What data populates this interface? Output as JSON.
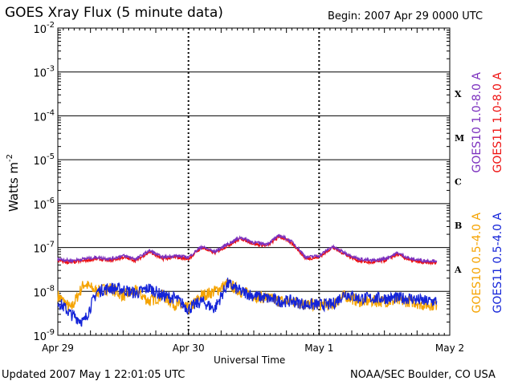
{
  "header": {
    "title": "GOES Xray Flux (5 minute data)",
    "begin": "Begin:  2007 Apr 29 0000 UTC"
  },
  "footer": {
    "updated": "Updated 2007 May  1 22:01:05 UTC",
    "credit": "NOAA/SEC Boulder, CO USA"
  },
  "chart_data": {
    "type": "line",
    "title": "GOES Xray Flux (5 minute data)",
    "xlabel": "Universal Time",
    "ylabel_base": "Watts m",
    "ylabel_exp": "-2",
    "yscale": "log",
    "ylim": [
      1e-09,
      0.01
    ],
    "xlim_days": [
      0,
      3
    ],
    "x_ticks": [
      "Apr 29",
      "Apr 30",
      "May 1",
      "May 2"
    ],
    "y_ticks": [
      {
        "base": "10",
        "exp": "-9"
      },
      {
        "base": "10",
        "exp": "-8"
      },
      {
        "base": "10",
        "exp": "-7"
      },
      {
        "base": "10",
        "exp": "-6"
      },
      {
        "base": "10",
        "exp": "-5"
      },
      {
        "base": "10",
        "exp": "-4"
      },
      {
        "base": "10",
        "exp": "-3"
      },
      {
        "base": "10",
        "exp": "-2"
      }
    ],
    "flare_classes": [
      "A",
      "B",
      "C",
      "M",
      "X"
    ],
    "colors": {
      "goes10_long": "#7b2fbe",
      "goes11_long": "#ee1111",
      "goes10_short": "#f5a300",
      "goes11_short": "#1424d8"
    },
    "legend_right": [
      {
        "text": "GOES10 1.0-8.0 A",
        "color": "#7b2fbe"
      },
      {
        "text": "GOES11 1.0-8.0 A",
        "color": "#ee1111"
      }
    ],
    "legend_right_lower": [
      {
        "text": "GOES10 0.5-4.0 A",
        "color": "#f5a300"
      },
      {
        "text": "GOES11 0.5-4.0 A",
        "color": "#1424d8"
      }
    ],
    "series": [
      {
        "name": "GOES11 1.0-8.0 A",
        "x": [
          0.0,
          0.1,
          0.2,
          0.3,
          0.4,
          0.5,
          0.6,
          0.7,
          0.8,
          0.9,
          1.0,
          1.1,
          1.2,
          1.3,
          1.4,
          1.5,
          1.6,
          1.7,
          1.8,
          1.9,
          2.0,
          2.1,
          2.2,
          2.3,
          2.4,
          2.5,
          2.6,
          2.7,
          2.8,
          2.9
        ],
        "y": [
          5e-08,
          4.5e-08,
          5e-08,
          5.5e-08,
          5e-08,
          6e-08,
          5e-08,
          8e-08,
          5.5e-08,
          6e-08,
          5.5e-08,
          1e-07,
          7.5e-08,
          1.1e-07,
          1.6e-07,
          1.2e-07,
          1.1e-07,
          1.8e-07,
          1.2e-07,
          5.5e-08,
          6e-08,
          1e-07,
          7e-08,
          5e-08,
          4.5e-08,
          5e-08,
          7e-08,
          5e-08,
          4.5e-08,
          4.5e-08
        ]
      },
      {
        "name": "GOES10 1.0-8.0 A",
        "x": [
          0.0,
          0.1,
          0.2,
          0.3,
          0.4,
          0.5,
          0.6,
          0.7,
          0.8,
          0.9,
          1.0,
          1.1,
          1.2,
          1.3,
          1.4,
          1.5,
          1.6,
          1.7,
          1.8,
          1.9,
          2.0,
          2.1,
          2.2,
          2.3,
          2.4,
          2.5,
          2.6,
          2.7,
          2.8,
          2.9
        ],
        "y": [
          5.5e-08,
          5e-08,
          5.5e-08,
          6e-08,
          5.5e-08,
          6.5e-08,
          5.5e-08,
          8.5e-08,
          6e-08,
          6.5e-08,
          6e-08,
          1.05e-07,
          8e-08,
          1.2e-07,
          1.7e-07,
          1.3e-07,
          1.2e-07,
          1.9e-07,
          1.3e-07,
          6e-08,
          6.5e-08,
          1.05e-07,
          7.5e-08,
          5.5e-08,
          5e-08,
          5.5e-08,
          7.5e-08,
          5.5e-08,
          5e-08,
          5e-08
        ]
      },
      {
        "name": "GOES10 0.5-4.0 A",
        "x": [
          0.0,
          0.1,
          0.2,
          0.3,
          0.4,
          0.5,
          0.6,
          0.7,
          0.8,
          0.9,
          1.0,
          1.1,
          1.2,
          1.3,
          1.4,
          1.5,
          1.6,
          1.7,
          1.8,
          1.9,
          2.0,
          2.1,
          2.2,
          2.3,
          2.4,
          2.5,
          2.6,
          2.7,
          2.8,
          2.9
        ],
        "y": [
          8e-09,
          4e-09,
          1.5e-08,
          1e-08,
          1.2e-08,
          8e-09,
          1e-08,
          6e-09,
          8e-09,
          5e-09,
          4e-09,
          8e-09,
          1e-08,
          1.5e-08,
          1e-08,
          8e-09,
          7e-09,
          6e-09,
          6e-09,
          5e-09,
          5e-09,
          5e-09,
          8e-09,
          6e-09,
          6e-09,
          6e-09,
          6e-09,
          6e-09,
          5e-09,
          5e-09
        ]
      },
      {
        "name": "GOES11 0.5-4.0 A",
        "x": [
          0.0,
          0.1,
          0.2,
          0.3,
          0.4,
          0.5,
          0.6,
          0.7,
          0.8,
          0.9,
          1.0,
          1.1,
          1.2,
          1.3,
          1.4,
          1.5,
          1.6,
          1.7,
          1.8,
          1.9,
          2.0,
          2.1,
          2.2,
          2.3,
          2.4,
          2.5,
          2.6,
          2.7,
          2.8,
          2.9
        ],
        "y": [
          6e-09,
          3e-09,
          2e-09,
          1e-08,
          1.2e-08,
          1.1e-08,
          9e-09,
          1.2e-08,
          8e-09,
          7e-09,
          4e-09,
          6e-09,
          4e-09,
          1.5e-08,
          1e-08,
          8e-09,
          7e-09,
          6e-09,
          6e-09,
          5e-09,
          5e-09,
          5e-09,
          9e-09,
          7e-09,
          7e-09,
          7e-09,
          7e-09,
          7e-09,
          6e-09,
          6e-09
        ]
      }
    ]
  }
}
